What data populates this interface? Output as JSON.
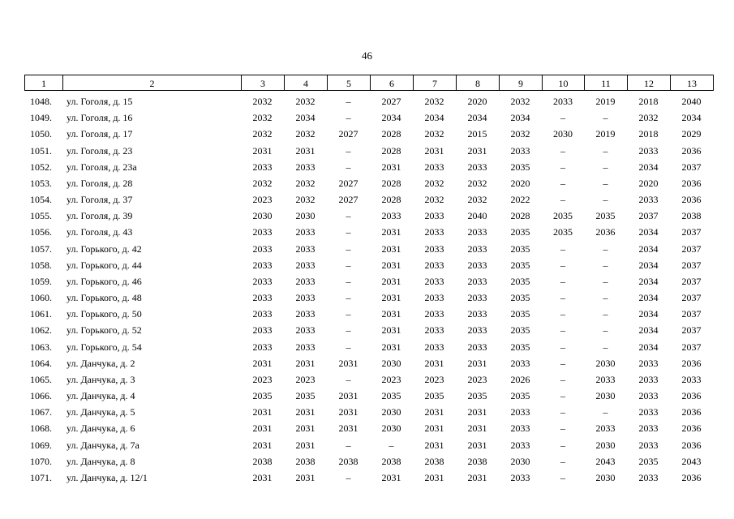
{
  "header": {
    "page_number": "46"
  },
  "table": {
    "columns": [
      "1",
      "2",
      "3",
      "4",
      "5",
      "6",
      "7",
      "8",
      "9",
      "10",
      "11",
      "12",
      "13"
    ],
    "rows": [
      [
        "1048.",
        "ул. Гоголя, д. 15",
        "2032",
        "2032",
        "–",
        "2027",
        "2032",
        "2020",
        "2032",
        "2033",
        "2019",
        "2018",
        "2040"
      ],
      [
        "1049.",
        "ул. Гоголя, д. 16",
        "2032",
        "2034",
        "–",
        "2034",
        "2034",
        "2034",
        "2034",
        "–",
        "–",
        "2032",
        "2034"
      ],
      [
        "1050.",
        "ул. Гоголя, д. 17",
        "2032",
        "2032",
        "2027",
        "2028",
        "2032",
        "2015",
        "2032",
        "2030",
        "2019",
        "2018",
        "2029"
      ],
      [
        "1051.",
        "ул. Гоголя, д. 23",
        "2031",
        "2031",
        "–",
        "2028",
        "2031",
        "2031",
        "2033",
        "–",
        "–",
        "2033",
        "2036"
      ],
      [
        "1052.",
        "ул. Гоголя, д. 23а",
        "2033",
        "2033",
        "–",
        "2031",
        "2033",
        "2033",
        "2035",
        "–",
        "–",
        "2034",
        "2037"
      ],
      [
        "1053.",
        "ул. Гоголя, д. 28",
        "2032",
        "2032",
        "2027",
        "2028",
        "2032",
        "2032",
        "2020",
        "–",
        "–",
        "2020",
        "2036"
      ],
      [
        "1054.",
        "ул. Гоголя, д. 37",
        "2023",
        "2032",
        "2027",
        "2028",
        "2032",
        "2032",
        "2022",
        "–",
        "–",
        "2033",
        "2036"
      ],
      [
        "1055.",
        "ул. Гоголя, д. 39",
        "2030",
        "2030",
        "–",
        "2033",
        "2033",
        "2040",
        "2028",
        "2035",
        "2035",
        "2037",
        "2038"
      ],
      [
        "1056.",
        "ул. Гоголя, д. 43",
        "2033",
        "2033",
        "–",
        "2031",
        "2033",
        "2033",
        "2035",
        "2035",
        "2036",
        "2034",
        "2037"
      ],
      [
        "1057.",
        "ул. Горького, д. 42",
        "2033",
        "2033",
        "–",
        "2031",
        "2033",
        "2033",
        "2035",
        "–",
        "–",
        "2034",
        "2037"
      ],
      [
        "1058.",
        "ул. Горького, д. 44",
        "2033",
        "2033",
        "–",
        "2031",
        "2033",
        "2033",
        "2035",
        "–",
        "–",
        "2034",
        "2037"
      ],
      [
        "1059.",
        "ул. Горького, д. 46",
        "2033",
        "2033",
        "–",
        "2031",
        "2033",
        "2033",
        "2035",
        "–",
        "–",
        "2034",
        "2037"
      ],
      [
        "1060.",
        "ул. Горького, д. 48",
        "2033",
        "2033",
        "–",
        "2031",
        "2033",
        "2033",
        "2035",
        "–",
        "–",
        "2034",
        "2037"
      ],
      [
        "1061.",
        "ул. Горького, д. 50",
        "2033",
        "2033",
        "–",
        "2031",
        "2033",
        "2033",
        "2035",
        "–",
        "–",
        "2034",
        "2037"
      ],
      [
        "1062.",
        "ул. Горького, д. 52",
        "2033",
        "2033",
        "–",
        "2031",
        "2033",
        "2033",
        "2035",
        "–",
        "–",
        "2034",
        "2037"
      ],
      [
        "1063.",
        "ул. Горького, д. 54",
        "2033",
        "2033",
        "–",
        "2031",
        "2033",
        "2033",
        "2035",
        "–",
        "–",
        "2034",
        "2037"
      ],
      [
        "1064.",
        "ул. Данчука, д. 2",
        "2031",
        "2031",
        "2031",
        "2030",
        "2031",
        "2031",
        "2033",
        "–",
        "2030",
        "2033",
        "2036"
      ],
      [
        "1065.",
        "ул. Данчука, д. 3",
        "2023",
        "2023",
        "–",
        "2023",
        "2023",
        "2023",
        "2026",
        "–",
        "2033",
        "2033",
        "2033"
      ],
      [
        "1066.",
        "ул. Данчука, д. 4",
        "2035",
        "2035",
        "2031",
        "2035",
        "2035",
        "2035",
        "2035",
        "–",
        "2030",
        "2033",
        "2036"
      ],
      [
        "1067.",
        "ул. Данчука, д. 5",
        "2031",
        "2031",
        "2031",
        "2030",
        "2031",
        "2031",
        "2033",
        "–",
        "–",
        "2033",
        "2036"
      ],
      [
        "1068.",
        "ул. Данчука, д. 6",
        "2031",
        "2031",
        "2031",
        "2030",
        "2031",
        "2031",
        "2033",
        "–",
        "2033",
        "2033",
        "2036"
      ],
      [
        "1069.",
        "ул. Данчука, д. 7а",
        "2031",
        "2031",
        "–",
        "–",
        "2031",
        "2031",
        "2033",
        "–",
        "2030",
        "2033",
        "2036"
      ],
      [
        "1070.",
        "ул. Данчука, д. 8",
        "2038",
        "2038",
        "2038",
        "2038",
        "2038",
        "2038",
        "2030",
        "–",
        "2043",
        "2035",
        "2043"
      ],
      [
        "1071.",
        "ул. Данчука, д. 12/1",
        "2031",
        "2031",
        "–",
        "2031",
        "2031",
        "2031",
        "2033",
        "–",
        "2030",
        "2033",
        "2036"
      ]
    ]
  }
}
